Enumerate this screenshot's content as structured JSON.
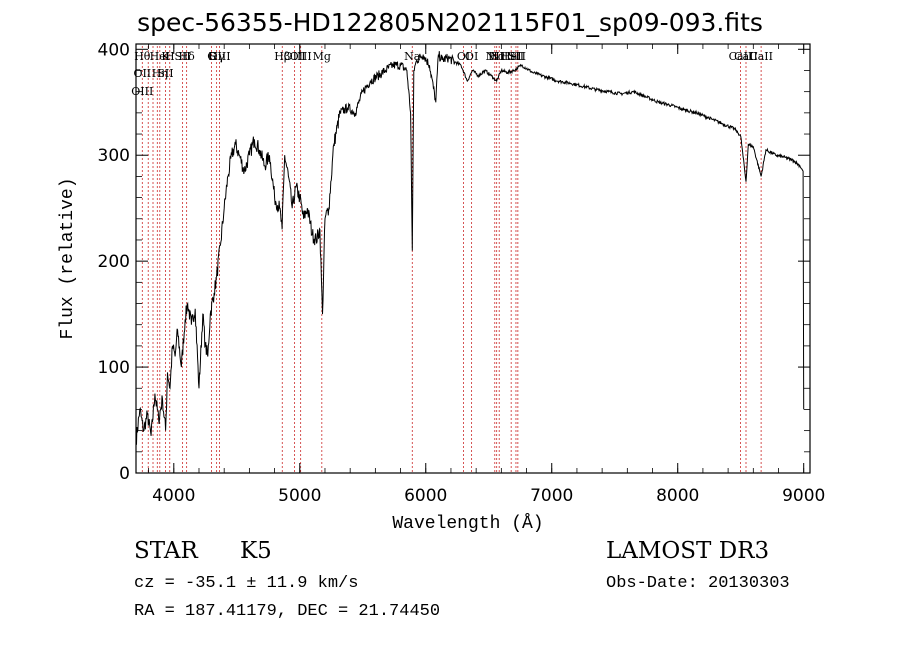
{
  "title": "spec-56355-HD122805N202115F01_sp09-093.fits",
  "chart_data": {
    "type": "line",
    "title": "spec-56355-HD122805N202115F01_sp09-093.fits",
    "xlabel": "Wavelength (Å)",
    "ylabel": "Flux (relative)",
    "xlim": [
      3700,
      9050
    ],
    "ylim": [
      0,
      405
    ],
    "xticks": [
      4000,
      5000,
      6000,
      7000,
      8000,
      9000
    ],
    "yticks": [
      0,
      100,
      200,
      300,
      400
    ],
    "series": [
      {
        "name": "flux",
        "x": [
          3700,
          3730,
          3760,
          3790,
          3820,
          3850,
          3880,
          3910,
          3935,
          3950,
          3970,
          3990,
          4010,
          4030,
          4060,
          4090,
          4110,
          4140,
          4170,
          4200,
          4230,
          4250,
          4270,
          4290,
          4320,
          4340,
          4370,
          4400,
          4430,
          4460,
          4490,
          4520,
          4560,
          4600,
          4640,
          4680,
          4720,
          4760,
          4800,
          4840,
          4860,
          4880,
          4910,
          4940,
          4970,
          5000,
          5030,
          5060,
          5100,
          5130,
          5160,
          5180,
          5200,
          5230,
          5270,
          5320,
          5380,
          5440,
          5500,
          5560,
          5620,
          5680,
          5740,
          5800,
          5850,
          5880,
          5893,
          5905,
          5930,
          5980,
          6030,
          6080,
          6100,
          6130,
          6180,
          6230,
          6280,
          6330,
          6370,
          6420,
          6470,
          6520,
          6563,
          6600,
          6650,
          6700,
          6760,
          6850,
          6950,
          7050,
          7150,
          7250,
          7350,
          7450,
          7550,
          7650,
          7750,
          7850,
          7950,
          8050,
          8150,
          8250,
          8350,
          8450,
          8500,
          8542,
          8560,
          8600,
          8662,
          8700,
          8780,
          8850,
          8920,
          8970,
          8995,
          9000
        ],
        "y": [
          30,
          60,
          40,
          55,
          35,
          75,
          50,
          70,
          40,
          95,
          80,
          120,
          110,
          135,
          100,
          145,
          160,
          140,
          155,
          80,
          150,
          120,
          110,
          150,
          170,
          185,
          215,
          250,
          280,
          300,
          310,
          300,
          285,
          300,
          315,
          305,
          290,
          300,
          260,
          250,
          230,
          300,
          280,
          250,
          270,
          260,
          240,
          250,
          225,
          220,
          230,
          150,
          240,
          250,
          310,
          340,
          345,
          340,
          360,
          370,
          375,
          380,
          385,
          385,
          380,
          340,
          210,
          380,
          390,
          395,
          385,
          350,
          395,
          390,
          392,
          388,
          385,
          370,
          380,
          375,
          380,
          375,
          370,
          380,
          378,
          380,
          385,
          378,
          374,
          370,
          368,
          365,
          362,
          360,
          358,
          360,
          355,
          350,
          347,
          343,
          340,
          335,
          330,
          325,
          318,
          275,
          310,
          308,
          280,
          305,
          300,
          298,
          295,
          290,
          285,
          60
        ]
      }
    ],
    "lines": [
      {
        "wl": 3750,
        "labels": [
          "Hθ",
          "OII",
          "OIII"
        ],
        "row": "top"
      },
      {
        "wl": 3797,
        "labels": [],
        "row": "top"
      },
      {
        "wl": 3835,
        "labels": [],
        "row": "top"
      },
      {
        "wl": 3869,
        "labels": [],
        "row": "top"
      },
      {
        "wl": 3889,
        "labels": [
          "HeI",
          "Hη"
        ],
        "row": "top"
      },
      {
        "wl": 3934,
        "labels": [
          "K",
          "SII"
        ],
        "row": "top"
      },
      {
        "wl": 3968,
        "labels": [
          "H"
        ],
        "row": "top"
      },
      {
        "wl": 4070,
        "labels": [
          "SII"
        ],
        "row": "top"
      },
      {
        "wl": 4102,
        "labels": [
          "Hδ"
        ],
        "row": "top"
      },
      {
        "wl": 4300,
        "labels": [
          "G"
        ],
        "row": "top"
      },
      {
        "wl": 4340,
        "labels": [
          "Hγ"
        ],
        "row": "top"
      },
      {
        "wl": 4363,
        "labels": [
          "OIII"
        ],
        "row": "top"
      },
      {
        "wl": 4861,
        "labels": [
          "Hβ"
        ],
        "row": "top"
      },
      {
        "wl": 4959,
        "labels": [
          "OIII"
        ],
        "row": "top"
      },
      {
        "wl": 5007,
        "labels": [
          "OIII"
        ],
        "row": "top"
      },
      {
        "wl": 5175,
        "labels": [
          "Mg"
        ],
        "row": "top"
      },
      {
        "wl": 5893,
        "labels": [
          "Na"
        ],
        "row": "top"
      },
      {
        "wl": 6300,
        "labels": [
          "OI"
        ],
        "row": "top"
      },
      {
        "wl": 6364,
        "labels": [
          "OI"
        ],
        "row": "top"
      },
      {
        "wl": 6548,
        "labels": [
          "NII"
        ],
        "row": "top"
      },
      {
        "wl": 6563,
        "labels": [
          "Hα"
        ],
        "row": "top"
      },
      {
        "wl": 6583,
        "labels": [
          "NII"
        ],
        "row": "top"
      },
      {
        "wl": 6678,
        "labels": [
          "HeI"
        ],
        "row": "top"
      },
      {
        "wl": 6716,
        "labels": [
          "SII"
        ],
        "row": "top"
      },
      {
        "wl": 6731,
        "labels": [
          "SII"
        ],
        "row": "top"
      },
      {
        "wl": 8498,
        "labels": [
          "CaII"
        ],
        "row": "top"
      },
      {
        "wl": 8542,
        "labels": [
          "CaII"
        ],
        "row": "top"
      },
      {
        "wl": 8662,
        "labels": [
          "CaII"
        ],
        "row": "top"
      }
    ]
  },
  "info": {
    "class": "STAR",
    "subclass": "K5",
    "survey": "LAMOST DR3",
    "cz": "cz = -35.1 ± 11.9 km/s",
    "obs_date": "Obs-Date: 20130303",
    "radec": "RA = 187.41179, DEC =  21.74450"
  }
}
